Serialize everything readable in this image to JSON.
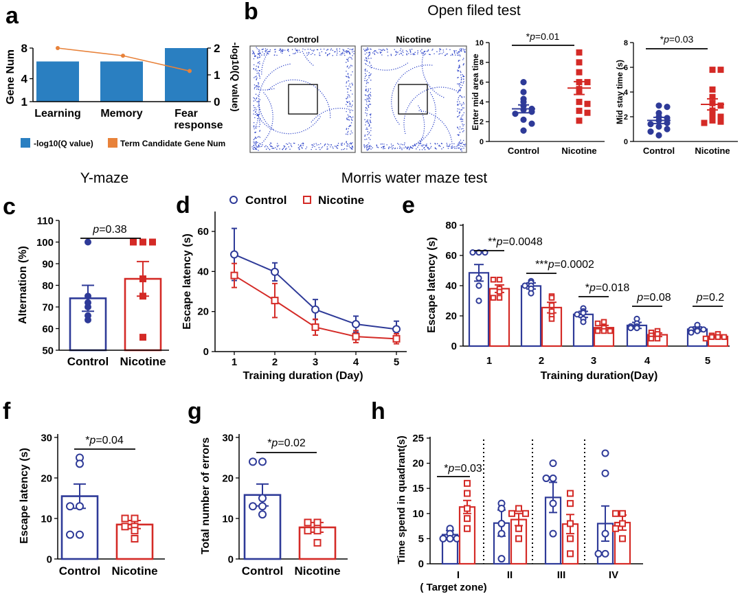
{
  "colors": {
    "control": "#2e3a98",
    "nicotine": "#d42a26",
    "bar_blue": "#2a7fc1",
    "line_orange": "#e8823a",
    "dots_blue": "#2f45c9"
  },
  "panel_labels": {
    "a": "a",
    "b": "b",
    "c": "c",
    "d": "d",
    "e": "e",
    "f": "f",
    "g": "g",
    "h": "h"
  },
  "section_titles": {
    "open_field": "Open filed test",
    "y_maze": "Y-maze",
    "morris": "Morris water maze test"
  },
  "groups": {
    "control": "Control",
    "nicotine": "Nicotine"
  },
  "panel_a": {
    "ylabel_left": "Gene Num",
    "ylabel_right": "-log10(Q value)",
    "legend_bar": "-log10(Q value)",
    "legend_line": "Term Candidate Gene Num",
    "left_ticks": [
      "1",
      "4",
      "8"
    ],
    "right_ticks": [
      "0",
      "1",
      "2"
    ],
    "categories": [
      "Learning",
      "Memory",
      "Fear",
      "response"
    ]
  },
  "panel_b": {
    "track_titles": [
      "Control",
      "Nicotine"
    ],
    "left": {
      "ylabel": "Enter mid area time",
      "ticks": [
        "0",
        "2",
        "4",
        "6",
        "8",
        "10"
      ],
      "sig": "*",
      "p_label": "p",
      "p_value": "=0.01"
    },
    "right": {
      "ylabel": "Mid stay time (s)",
      "ticks": [
        "0",
        "2",
        "4",
        "6",
        "8"
      ],
      "sig": "*",
      "p_label": "p",
      "p_value": "=0.03"
    }
  },
  "panel_c": {
    "ylabel": "Alternation (%)",
    "ticks": [
      "50",
      "60",
      "70",
      "80",
      "90",
      "100",
      "110"
    ],
    "p_label": "p",
    "p_value": "=0.38"
  },
  "panel_d": {
    "ylabel": "Escape latency (s)",
    "xlabel": "Training duration (Day)",
    "ticks_y": [
      "0",
      "20",
      "40",
      "60"
    ],
    "ticks_x": [
      "1",
      "2",
      "3",
      "4",
      "5"
    ]
  },
  "panel_e": {
    "ylabel": "Escape latency (s)",
    "xlabel": "Training duration(Day)",
    "ticks_y": [
      "0",
      "20",
      "40",
      "60",
      "80"
    ],
    "ticks_x": [
      "1",
      "2",
      "3",
      "4",
      "5"
    ],
    "annotations": [
      {
        "sig": "**",
        "p_label": "p",
        "p_value": "=0.0048"
      },
      {
        "sig": "***",
        "p_label": "p",
        "p_value": "=0.0002"
      },
      {
        "sig": "*",
        "p_label": "p",
        "p_value": "=0.018"
      },
      {
        "sig": "",
        "p_label": "p",
        "p_value": "=0.08"
      },
      {
        "sig": "",
        "p_label": "p",
        "p_value": "=0.2"
      }
    ]
  },
  "panel_f": {
    "ylabel": "Escape latency (s)",
    "ticks": [
      "0",
      "10",
      "20",
      "30"
    ],
    "sig": "*",
    "p_label": "p",
    "p_value": "=0.04"
  },
  "panel_g": {
    "ylabel": "Total number of errors",
    "ticks": [
      "0",
      "10",
      "20",
      "30"
    ],
    "sig": "*",
    "p_label": "p",
    "p_value": "=0.02"
  },
  "panel_h": {
    "ylabel": "Time spend in quadrant(s)",
    "ticks": [
      "0",
      "5",
      "10",
      "15",
      "20",
      "25"
    ],
    "categories": [
      "I",
      "II",
      "III",
      "IV"
    ],
    "sublabel": "( Target zone)",
    "sig": "*",
    "p_label": "p",
    "p_value": "=0.03"
  },
  "chart_data": [
    {
      "panel": "a",
      "type": "bar",
      "categories": [
        "Learning",
        "Memory",
        "Fear response"
      ],
      "series": [
        {
          "name": "-log10(Q value)",
          "axis": "right",
          "kind": "bar",
          "values": [
            1.5,
            1.5,
            2.0
          ]
        },
        {
          "name": "Term Candidate Gene Num",
          "axis": "left",
          "kind": "line",
          "values": [
            8,
            7,
            5
          ]
        }
      ],
      "ylim_left": [
        1,
        8
      ],
      "ylim_right": [
        0,
        2
      ]
    },
    {
      "panel": "b-left",
      "type": "scatter",
      "categories": [
        "Control",
        "Nicotine"
      ],
      "ylabel": "Enter mid area time",
      "ylim": [
        0,
        10
      ],
      "series": [
        {
          "name": "Control",
          "mean": 3.3,
          "sem": 0.4,
          "points": [
            6.0,
            5.0,
            4.3,
            4.0,
            3.6,
            3.3,
            3.2,
            3.0,
            2.8,
            2.2,
            1.8,
            1.1
          ]
        },
        {
          "name": "Nicotine",
          "mean": 5.4,
          "sem": 0.65,
          "points": [
            9.0,
            8.0,
            7.0,
            6.0,
            6.0,
            5.3,
            5.0,
            4.0,
            3.8,
            3.1,
            2.9,
            2.1
          ]
        }
      ]
    },
    {
      "panel": "b-right",
      "type": "scatter",
      "categories": [
        "Control",
        "Nicotine"
      ],
      "ylabel": "Mid stay time (s)",
      "ylim": [
        0,
        8
      ],
      "series": [
        {
          "name": "Control",
          "mean": 1.7,
          "sem": 0.25,
          "points": [
            2.9,
            2.8,
            2.3,
            2.0,
            1.9,
            1.7,
            1.5,
            1.4,
            1.2,
            1.0,
            0.8,
            0.5
          ]
        },
        {
          "name": "Nicotine",
          "mean": 3.0,
          "sem": 0.45,
          "points": [
            5.8,
            5.8,
            4.2,
            3.6,
            3.1,
            2.9,
            2.5,
            2.1,
            2.0,
            1.7,
            1.6,
            1.5
          ]
        }
      ]
    },
    {
      "panel": "c",
      "type": "bar",
      "categories": [
        "Control",
        "Nicotine"
      ],
      "ylabel": "Alternation (%)",
      "ylim": [
        50,
        110
      ],
      "series": [
        {
          "name": "Control",
          "mean": 74,
          "sem": 6,
          "points": [
            100,
            75,
            72,
            70,
            66,
            64
          ]
        },
        {
          "name": "Nicotine",
          "mean": 83,
          "sem": 8,
          "points": [
            100,
            100,
            100,
            83,
            75,
            56
          ]
        }
      ]
    },
    {
      "panel": "d",
      "type": "line",
      "x": [
        1,
        2,
        3,
        4,
        5
      ],
      "xlabel": "Training duration (Day)",
      "ylabel": "Escape latency (s)",
      "ylim": [
        0,
        70
      ],
      "series": [
        {
          "name": "Control",
          "values": [
            48.5,
            39.8,
            21.0,
            13.7,
            11.2
          ],
          "sem": [
            13,
            4.5,
            5,
            4,
            4
          ]
        },
        {
          "name": "Nicotine",
          "values": [
            38.0,
            25.5,
            12.2,
            7.5,
            6.4
          ],
          "sem": [
            6,
            8.5,
            4,
            3,
            2.5
          ]
        }
      ]
    },
    {
      "panel": "e",
      "type": "bar",
      "categories": [
        "1",
        "2",
        "3",
        "4",
        "5"
      ],
      "xlabel": "Training duration(Day)",
      "ylabel": "Escape latency (s)",
      "ylim": [
        0,
        80
      ],
      "series": [
        {
          "name": "Control",
          "values": [
            48.5,
            39.8,
            21.0,
            13.7,
            11.2
          ],
          "sem": [
            5.5,
            2.0,
            2.0,
            2.0,
            1.5
          ],
          "points": [
            [
              62,
              62,
              62,
              45,
              40,
              30
            ],
            [
              43,
              42,
              40,
              40,
              38,
              35
            ],
            [
              25,
              23,
              22,
              21,
              18,
              16
            ],
            [
              18,
              15,
              13,
              13,
              12,
              12
            ],
            [
              14,
              11,
              11,
              11,
              10,
              9
            ]
          ]
        },
        {
          "name": "Nicotine",
          "values": [
            38.0,
            25.5,
            12.2,
            7.5,
            6.4
          ],
          "sem": [
            2.5,
            3.5,
            1.5,
            1.2,
            0.9
          ],
          "points": [
            [
              44,
              44,
              38,
              36,
              32,
              32
            ],
            [
              33,
              32,
              27,
              23,
              20,
              18
            ],
            [
              16,
              15,
              12,
              10,
              10,
              10
            ],
            [
              10,
              9,
              8,
              7,
              5,
              5
            ],
            [
              8,
              7,
              6,
              6,
              6,
              5
            ]
          ]
        }
      ]
    },
    {
      "panel": "f",
      "type": "bar",
      "categories": [
        "Control",
        "Nicotine"
      ],
      "ylabel": "Escape latency (s)",
      "ylim": [
        0,
        30
      ],
      "series": [
        {
          "name": "Control",
          "mean": 15.5,
          "sem": 3.0,
          "points": [
            25,
            23.5,
            13,
            13,
            6,
            6
          ]
        },
        {
          "name": "Nicotine",
          "mean": 8.5,
          "sem": 1.0,
          "points": [
            10,
            10,
            8,
            8,
            7,
            5
          ]
        }
      ]
    },
    {
      "panel": "g",
      "type": "bar",
      "categories": [
        "Control",
        "Nicotine"
      ],
      "ylabel": "Total number of errors",
      "ylim": [
        0,
        30
      ],
      "series": [
        {
          "name": "Control",
          "mean": 15.8,
          "sem": 2.7,
          "points": [
            24,
            24,
            15,
            13,
            13,
            11
          ]
        },
        {
          "name": "Nicotine",
          "mean": 7.8,
          "sem": 1.2,
          "points": [
            9,
            9,
            7.5,
            7,
            7,
            4
          ]
        }
      ]
    },
    {
      "panel": "h",
      "type": "bar",
      "categories": [
        "I",
        "II",
        "III",
        "IV"
      ],
      "ylabel": "Time spend in quadrant(s)",
      "ylim": [
        0,
        25
      ],
      "series": [
        {
          "name": "Control",
          "values": [
            5.8,
            8.1,
            13.2,
            8.0
          ],
          "sem": [
            0.8,
            2.6,
            3.0,
            3.5
          ],
          "points": [
            [
              7,
              6,
              5,
              5,
              5
            ],
            [
              12,
              11,
              8,
              6,
              1
            ],
            [
              20,
              17,
              17,
              12,
              6
            ],
            [
              22,
              18,
              6,
              2,
              2
            ]
          ]
        },
        {
          "name": "Nicotine",
          "values": [
            11.3,
            8.8,
            7.9,
            8.2
          ],
          "sem": [
            1.3,
            1.2,
            1.9,
            1.5
          ],
          "points": [
            [
              16,
              14,
              11,
              9,
              7
            ],
            [
              11,
              10,
              10,
              7,
              5
            ],
            [
              14,
              12,
              8,
              5,
              2
            ],
            [
              10,
              10,
              8,
              7,
              5
            ]
          ]
        }
      ]
    }
  ]
}
